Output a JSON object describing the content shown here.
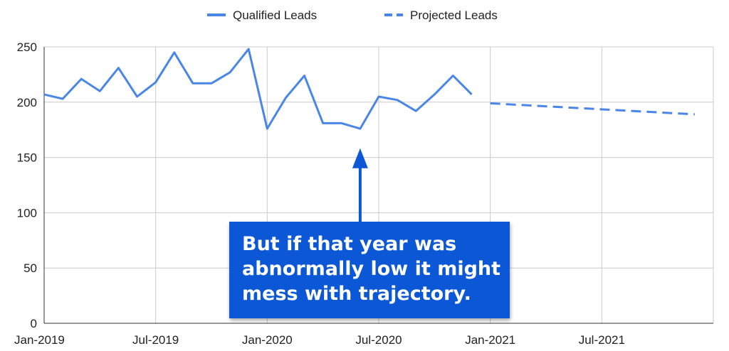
{
  "chart_data": {
    "type": "line",
    "title": "",
    "xlabel": "",
    "ylabel": "",
    "ylim": [
      0,
      250
    ],
    "y_ticks": [
      0,
      50,
      100,
      150,
      200,
      250
    ],
    "x_tick_labels": [
      "Jan-2019",
      "Jul-2019",
      "Jan-2020",
      "Jul-2020",
      "Jan-2021",
      "Jul-2021"
    ],
    "x_range": [
      "2019-01",
      "2021-12"
    ],
    "grid": true,
    "legend_position": "top-center",
    "series": [
      {
        "name": "Qualified Leads",
        "style": "solid",
        "color": "#4a86e8",
        "points": [
          {
            "x": "2019-01",
            "y": 207
          },
          {
            "x": "2019-02",
            "y": 203
          },
          {
            "x": "2019-03",
            "y": 221
          },
          {
            "x": "2019-04",
            "y": 210
          },
          {
            "x": "2019-05",
            "y": 231
          },
          {
            "x": "2019-06",
            "y": 205
          },
          {
            "x": "2019-07",
            "y": 218
          },
          {
            "x": "2019-08",
            "y": 245
          },
          {
            "x": "2019-09",
            "y": 217
          },
          {
            "x": "2019-10",
            "y": 217
          },
          {
            "x": "2019-11",
            "y": 227
          },
          {
            "x": "2019-12",
            "y": 248
          },
          {
            "x": "2020-01",
            "y": 176
          },
          {
            "x": "2020-02",
            "y": 204
          },
          {
            "x": "2020-03",
            "y": 224
          },
          {
            "x": "2020-04",
            "y": 181
          },
          {
            "x": "2020-05",
            "y": 181
          },
          {
            "x": "2020-06",
            "y": 176
          },
          {
            "x": "2020-07",
            "y": 205
          },
          {
            "x": "2020-08",
            "y": 202
          },
          {
            "x": "2020-09",
            "y": 192
          },
          {
            "x": "2020-10",
            "y": 207
          },
          {
            "x": "2020-11",
            "y": 224
          },
          {
            "x": "2020-12",
            "y": 207
          }
        ]
      },
      {
        "name": "Projected Leads",
        "style": "dashed",
        "color": "#4a86e8",
        "points": [
          {
            "x": "2021-01",
            "y": 199
          },
          {
            "x": "2021-12",
            "y": 189
          }
        ]
      }
    ],
    "annotation": {
      "text": "But if that year was\nabnormally low it might\nmess with trajectory.",
      "background": "#0b57d6",
      "text_color": "#ffffff",
      "arrow_color": "#0b57d6",
      "arrow_points_to": {
        "x": "2020-06",
        "y": 157
      }
    }
  }
}
